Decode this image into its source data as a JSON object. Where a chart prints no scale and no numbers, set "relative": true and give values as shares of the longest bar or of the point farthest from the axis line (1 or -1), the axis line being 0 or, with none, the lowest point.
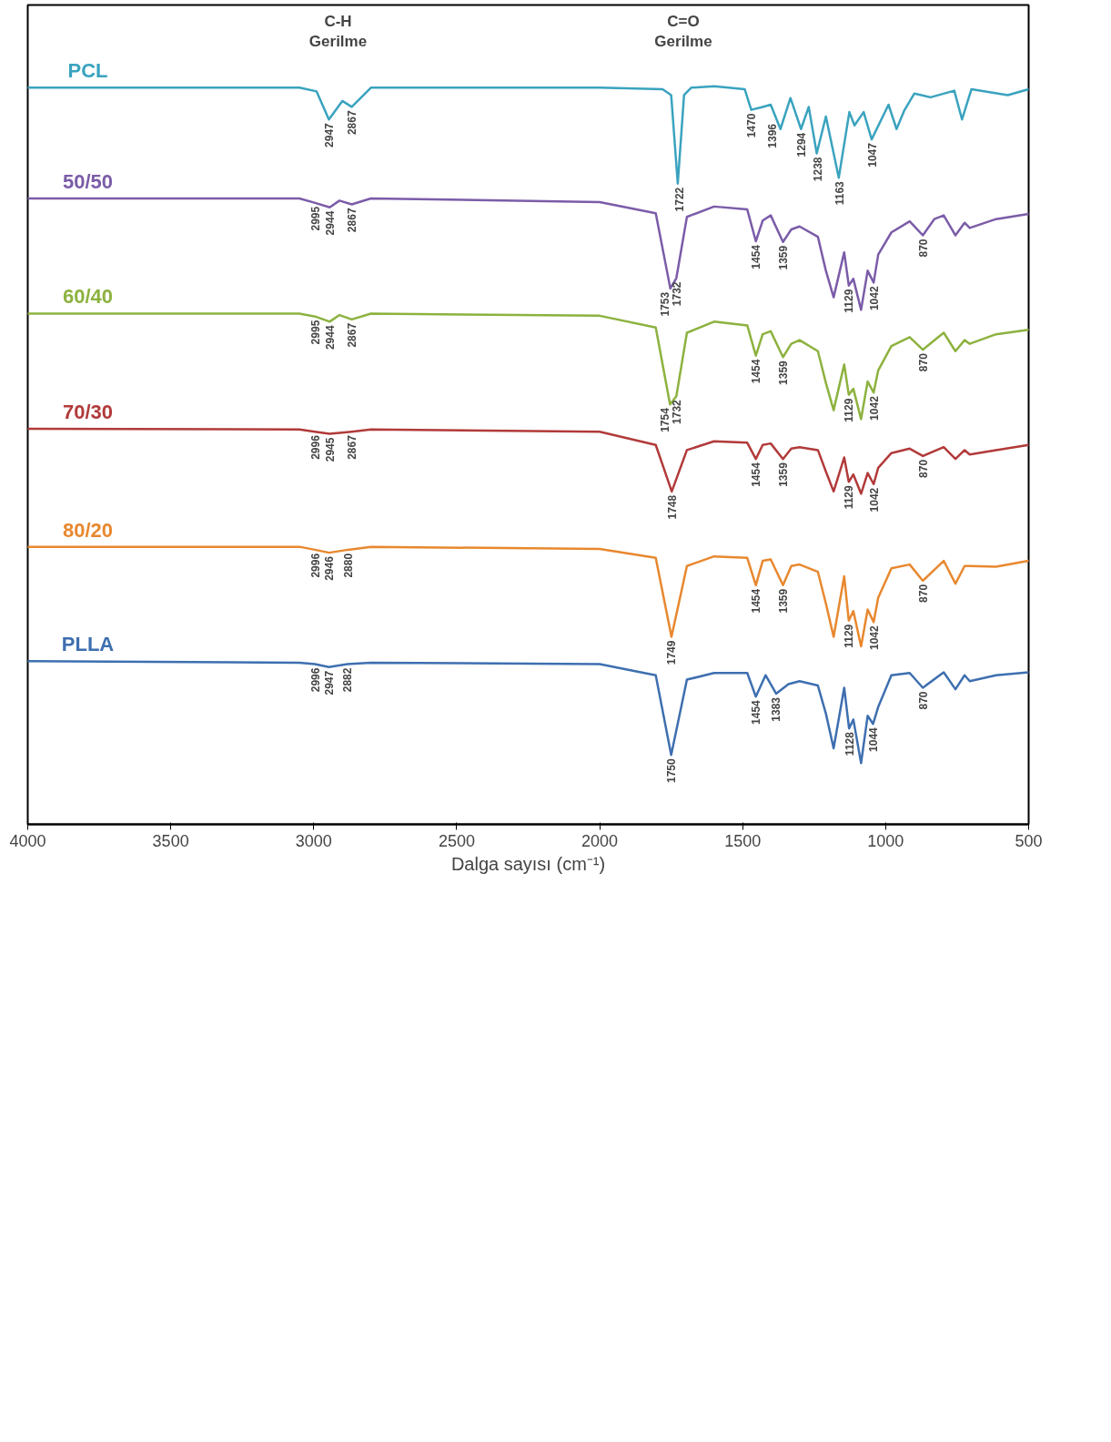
{
  "chart_data": {
    "type": "line",
    "relative": true,
    "xlabel": "Dalga sayısı (cm⁻¹)",
    "xlim": [
      4000,
      500
    ],
    "xticks": [
      500,
      1000,
      1500,
      2000,
      2500,
      3000,
      3500,
      4000
    ],
    "grid": false,
    "legend": false,
    "series": [
      {
        "name": "PCL",
        "color": "#3aa3bf",
        "x": [
          500,
          573,
          700,
          733,
          760,
          843,
          900,
          935,
          962,
          990,
          1049,
          1077,
          1109,
          1127,
          1164,
          1209,
          1241,
          1269,
          1296,
          1333,
          1368,
          1402,
          1430,
          1470,
          1493,
          1600,
          1680,
          1705,
          1727,
          1750,
          1780,
          2000,
          2800,
          2867,
          2900,
          2947,
          2990,
          3050,
          4000
        ],
        "values": [
          0.996,
          0.988,
          0.996,
          0.955,
          0.994,
          0.985,
          0.99,
          0.967,
          0.942,
          0.975,
          0.928,
          0.965,
          0.947,
          0.965,
          0.876,
          0.959,
          0.909,
          0.972,
          0.942,
          0.984,
          0.942,
          0.975,
          0.972,
          0.968,
          0.996,
          1.0,
          0.998,
          0.988,
          0.868,
          0.988,
          0.996,
          0.998,
          0.998,
          0.972,
          0.98,
          0.955,
          0.993,
          0.998,
          0.998
        ]
      },
      {
        "name": "50/50",
        "color": "#7b5ca8",
        "x": [
          500,
          614,
          706,
          724,
          756,
          797,
          830,
          870,
          916,
          980,
          1026,
          1042,
          1063,
          1086,
          1113,
          1129,
          1145,
          1182,
          1209,
          1237,
          1301,
          1330,
          1359,
          1402,
          1430,
          1454,
          1484,
          1600,
          1695,
          1732,
          1753,
          1804,
          2000,
          2800,
          2867,
          2910,
          2944,
          2995,
          3050,
          4000
        ],
        "values": [
          0.827,
          0.82,
          0.808,
          0.815,
          0.798,
          0.825,
          0.82,
          0.798,
          0.817,
          0.802,
          0.772,
          0.734,
          0.75,
          0.697,
          0.739,
          0.73,
          0.775,
          0.714,
          0.75,
          0.796,
          0.81,
          0.806,
          0.789,
          0.825,
          0.818,
          0.79,
          0.833,
          0.837,
          0.823,
          0.74,
          0.726,
          0.828,
          0.843,
          0.848,
          0.84,
          0.845,
          0.836,
          0.842,
          0.848,
          0.848
        ]
      },
      {
        "name": "60/40",
        "color": "#8db23f",
        "x": [
          500,
          614,
          706,
          724,
          756,
          797,
          870,
          916,
          980,
          1026,
          1042,
          1063,
          1086,
          1113,
          1129,
          1145,
          1182,
          1209,
          1237,
          1301,
          1330,
          1359,
          1402,
          1430,
          1454,
          1484,
          1600,
          1695,
          1732,
          1754,
          1804,
          2000,
          2800,
          2867,
          2910,
          2944,
          2995,
          3050,
          4000
        ],
        "values": [
          0.67,
          0.664,
          0.651,
          0.656,
          0.641,
          0.666,
          0.643,
          0.66,
          0.648,
          0.615,
          0.585,
          0.6,
          0.549,
          0.59,
          0.582,
          0.623,
          0.561,
          0.598,
          0.641,
          0.656,
          0.651,
          0.633,
          0.668,
          0.664,
          0.635,
          0.676,
          0.681,
          0.666,
          0.58,
          0.569,
          0.673,
          0.689,
          0.692,
          0.684,
          0.69,
          0.681,
          0.688,
          0.692,
          0.692
        ]
      },
      {
        "name": "70/30",
        "color": "#b23a3a",
        "x": [
          500,
          614,
          706,
          724,
          756,
          797,
          870,
          916,
          980,
          1026,
          1042,
          1063,
          1086,
          1113,
          1129,
          1145,
          1182,
          1209,
          1237,
          1301,
          1330,
          1359,
          1402,
          1430,
          1454,
          1484,
          1600,
          1695,
          1748,
          1804,
          2000,
          2800,
          2867,
          2945,
          2996,
          3050,
          4000
        ],
        "values": [
          0.514,
          0.507,
          0.501,
          0.507,
          0.495,
          0.511,
          0.499,
          0.509,
          0.503,
          0.483,
          0.461,
          0.476,
          0.448,
          0.474,
          0.464,
          0.497,
          0.451,
          0.478,
          0.507,
          0.511,
          0.509,
          0.495,
          0.516,
          0.514,
          0.495,
          0.517,
          0.519,
          0.507,
          0.451,
          0.514,
          0.532,
          0.535,
          0.532,
          0.529,
          0.532,
          0.535,
          0.536
        ]
      },
      {
        "name": "80/20",
        "color": "#e8882f",
        "x": [
          500,
          614,
          706,
          724,
          756,
          797,
          870,
          916,
          980,
          1026,
          1042,
          1063,
          1086,
          1113,
          1129,
          1145,
          1182,
          1209,
          1237,
          1301,
          1330,
          1359,
          1402,
          1430,
          1454,
          1484,
          1600,
          1695,
          1749,
          1804,
          2000,
          2800,
          2880,
          2946,
          2996,
          3050,
          4000
        ],
        "values": [
          0.357,
          0.349,
          0.35,
          0.35,
          0.326,
          0.357,
          0.33,
          0.352,
          0.347,
          0.307,
          0.274,
          0.291,
          0.241,
          0.289,
          0.276,
          0.336,
          0.254,
          0.299,
          0.342,
          0.352,
          0.35,
          0.324,
          0.359,
          0.357,
          0.324,
          0.361,
          0.363,
          0.35,
          0.254,
          0.361,
          0.373,
          0.376,
          0.372,
          0.368,
          0.372,
          0.376,
          0.376
        ]
      },
      {
        "name": "PLLA",
        "color": "#3e6fb0",
        "x": [
          500,
          614,
          706,
          724,
          756,
          797,
          870,
          916,
          980,
          1026,
          1044,
          1063,
          1086,
          1113,
          1128,
          1145,
          1182,
          1209,
          1237,
          1301,
          1340,
          1383,
          1420,
          1454,
          1484,
          1600,
          1695,
          1750,
          1804,
          2000,
          2800,
          2882,
          2947,
          2996,
          3050,
          4000
        ],
        "values": [
          0.206,
          0.202,
          0.194,
          0.202,
          0.183,
          0.206,
          0.185,
          0.205,
          0.202,
          0.159,
          0.136,
          0.147,
          0.083,
          0.142,
          0.13,
          0.185,
          0.103,
          0.15,
          0.188,
          0.194,
          0.19,
          0.177,
          0.202,
          0.173,
          0.205,
          0.205,
          0.196,
          0.094,
          0.202,
          0.217,
          0.219,
          0.217,
          0.213,
          0.217,
          0.219,
          0.221
        ]
      }
    ],
    "annotations": [
      "C=O\nGerilme",
      "C-H\nGerilme",
      {
        "text": "1047",
        "x": 1047,
        "y": 0.928
      },
      {
        "text": "1163",
        "x": 1163,
        "y": 0.876
      },
      {
        "text": "1238",
        "x": 1238,
        "y": 0.909
      },
      {
        "text": "1294",
        "x": 1294,
        "y": 0.942
      },
      {
        "text": "1396",
        "x": 1396,
        "y": 0.954
      },
      {
        "text": "1470",
        "x": 1470,
        "y": 0.968
      },
      {
        "text": "1722",
        "x": 1722,
        "y": 0.868
      },
      {
        "text": "2867",
        "x": 2867,
        "y": 0.972
      },
      {
        "text": "2947",
        "x": 2947,
        "y": 0.955
      },
      {
        "text": "870",
        "x": 870,
        "y": 0.798
      },
      {
        "text": "1042",
        "x": 1042,
        "y": 0.734
      },
      {
        "text": "1129",
        "x": 1129,
        "y": 0.73
      },
      {
        "text": "1359",
        "x": 1359,
        "y": 0.789
      },
      {
        "text": "1454",
        "x": 1454,
        "y": 0.79
      },
      {
        "text": "1732",
        "x": 1732,
        "y": 0.74
      },
      {
        "text": "1753",
        "x": 1753,
        "y": 0.726
      },
      {
        "text": "2867",
        "x": 2867,
        "y": 0.84
      },
      {
        "text": "2944",
        "x": 2944,
        "y": 0.836
      },
      {
        "text": "2995",
        "x": 2995,
        "y": 0.842
      },
      {
        "text": "870",
        "x": 870,
        "y": 0.643
      },
      {
        "text": "1042",
        "x": 1042,
        "y": 0.585
      },
      {
        "text": "1129",
        "x": 1129,
        "y": 0.582
      },
      {
        "text": "1359",
        "x": 1359,
        "y": 0.633
      },
      {
        "text": "1454",
        "x": 1454,
        "y": 0.635
      },
      {
        "text": "1732",
        "x": 1732,
        "y": 0.58
      },
      {
        "text": "1754",
        "x": 1754,
        "y": 0.569
      },
      {
        "text": "2867",
        "x": 2867,
        "y": 0.684
      },
      {
        "text": "2944",
        "x": 2944,
        "y": 0.681
      },
      {
        "text": "2995",
        "x": 2995,
        "y": 0.688
      },
      {
        "text": "870",
        "x": 870,
        "y": 0.499
      },
      {
        "text": "1042",
        "x": 1042,
        "y": 0.461
      },
      {
        "text": "1129",
        "x": 1129,
        "y": 0.464
      },
      {
        "text": "1359",
        "x": 1359,
        "y": 0.495
      },
      {
        "text": "1454",
        "x": 1454,
        "y": 0.495
      },
      {
        "text": "1748",
        "x": 1748,
        "y": 0.451
      },
      {
        "text": "2867",
        "x": 2867,
        "y": 0.532
      },
      {
        "text": "2945",
        "x": 2945,
        "y": 0.529
      },
      {
        "text": "2996",
        "x": 2996,
        "y": 0.532
      },
      {
        "text": "870",
        "x": 870,
        "y": 0.33
      },
      {
        "text": "1042",
        "x": 1042,
        "y": 0.274
      },
      {
        "text": "1129",
        "x": 1129,
        "y": 0.276
      },
      {
        "text": "1359",
        "x": 1359,
        "y": 0.324
      },
      {
        "text": "1454",
        "x": 1454,
        "y": 0.324
      },
      {
        "text": "1749",
        "x": 1749,
        "y": 0.254
      },
      {
        "text": "2880",
        "x": 2880,
        "y": 0.372
      },
      {
        "text": "2946",
        "x": 2946,
        "y": 0.368
      },
      {
        "text": "2996",
        "x": 2996,
        "y": 0.372
      },
      {
        "text": "870",
        "x": 870,
        "y": 0.185
      },
      {
        "text": "1044",
        "x": 1044,
        "y": 0.136
      },
      {
        "text": "1128",
        "x": 1128,
        "y": 0.13
      },
      {
        "text": "1383",
        "x": 1383,
        "y": 0.177
      },
      {
        "text": "1454",
        "x": 1454,
        "y": 0.173
      },
      {
        "text": "1750",
        "x": 1750,
        "y": 0.094
      },
      {
        "text": "2882",
        "x": 2882,
        "y": 0.217
      },
      {
        "text": "2947",
        "x": 2947,
        "y": 0.213
      },
      {
        "text": "2996",
        "x": 2996,
        "y": 0.217
      }
    ]
  }
}
